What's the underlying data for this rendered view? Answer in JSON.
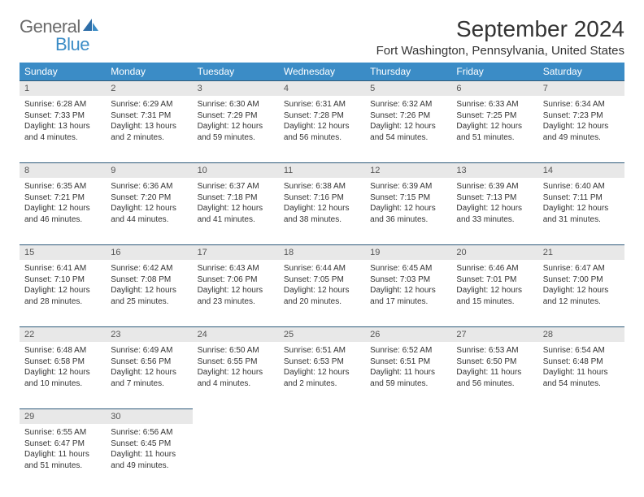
{
  "logo": {
    "word1": "General",
    "word2": "Blue",
    "color_gray": "#6b6b6b",
    "color_blue": "#3b8cc6"
  },
  "header": {
    "title": "September 2024",
    "location": "Fort Washington, Pennsylvania, United States"
  },
  "weekdayHeader": {
    "bg": "#3b8cc6",
    "fg": "#ffffff",
    "labels": [
      "Sunday",
      "Monday",
      "Tuesday",
      "Wednesday",
      "Thursday",
      "Friday",
      "Saturday"
    ]
  },
  "cellStyle": {
    "num_bg": "#e8e8e8",
    "num_border": "#2e5a7a",
    "text_color": "#333333",
    "fontsize_detail": 10,
    "fontsize_num": 11
  },
  "days": [
    {
      "n": "1",
      "sr": "6:28 AM",
      "ss": "7:33 PM",
      "dl": "13 hours and 4 minutes."
    },
    {
      "n": "2",
      "sr": "6:29 AM",
      "ss": "7:31 PM",
      "dl": "13 hours and 2 minutes."
    },
    {
      "n": "3",
      "sr": "6:30 AM",
      "ss": "7:29 PM",
      "dl": "12 hours and 59 minutes."
    },
    {
      "n": "4",
      "sr": "6:31 AM",
      "ss": "7:28 PM",
      "dl": "12 hours and 56 minutes."
    },
    {
      "n": "5",
      "sr": "6:32 AM",
      "ss": "7:26 PM",
      "dl": "12 hours and 54 minutes."
    },
    {
      "n": "6",
      "sr": "6:33 AM",
      "ss": "7:25 PM",
      "dl": "12 hours and 51 minutes."
    },
    {
      "n": "7",
      "sr": "6:34 AM",
      "ss": "7:23 PM",
      "dl": "12 hours and 49 minutes."
    },
    {
      "n": "8",
      "sr": "6:35 AM",
      "ss": "7:21 PM",
      "dl": "12 hours and 46 minutes."
    },
    {
      "n": "9",
      "sr": "6:36 AM",
      "ss": "7:20 PM",
      "dl": "12 hours and 44 minutes."
    },
    {
      "n": "10",
      "sr": "6:37 AM",
      "ss": "7:18 PM",
      "dl": "12 hours and 41 minutes."
    },
    {
      "n": "11",
      "sr": "6:38 AM",
      "ss": "7:16 PM",
      "dl": "12 hours and 38 minutes."
    },
    {
      "n": "12",
      "sr": "6:39 AM",
      "ss": "7:15 PM",
      "dl": "12 hours and 36 minutes."
    },
    {
      "n": "13",
      "sr": "6:39 AM",
      "ss": "7:13 PM",
      "dl": "12 hours and 33 minutes."
    },
    {
      "n": "14",
      "sr": "6:40 AM",
      "ss": "7:11 PM",
      "dl": "12 hours and 31 minutes."
    },
    {
      "n": "15",
      "sr": "6:41 AM",
      "ss": "7:10 PM",
      "dl": "12 hours and 28 minutes."
    },
    {
      "n": "16",
      "sr": "6:42 AM",
      "ss": "7:08 PM",
      "dl": "12 hours and 25 minutes."
    },
    {
      "n": "17",
      "sr": "6:43 AM",
      "ss": "7:06 PM",
      "dl": "12 hours and 23 minutes."
    },
    {
      "n": "18",
      "sr": "6:44 AM",
      "ss": "7:05 PM",
      "dl": "12 hours and 20 minutes."
    },
    {
      "n": "19",
      "sr": "6:45 AM",
      "ss": "7:03 PM",
      "dl": "12 hours and 17 minutes."
    },
    {
      "n": "20",
      "sr": "6:46 AM",
      "ss": "7:01 PM",
      "dl": "12 hours and 15 minutes."
    },
    {
      "n": "21",
      "sr": "6:47 AM",
      "ss": "7:00 PM",
      "dl": "12 hours and 12 minutes."
    },
    {
      "n": "22",
      "sr": "6:48 AM",
      "ss": "6:58 PM",
      "dl": "12 hours and 10 minutes."
    },
    {
      "n": "23",
      "sr": "6:49 AM",
      "ss": "6:56 PM",
      "dl": "12 hours and 7 minutes."
    },
    {
      "n": "24",
      "sr": "6:50 AM",
      "ss": "6:55 PM",
      "dl": "12 hours and 4 minutes."
    },
    {
      "n": "25",
      "sr": "6:51 AM",
      "ss": "6:53 PM",
      "dl": "12 hours and 2 minutes."
    },
    {
      "n": "26",
      "sr": "6:52 AM",
      "ss": "6:51 PM",
      "dl": "11 hours and 59 minutes."
    },
    {
      "n": "27",
      "sr": "6:53 AM",
      "ss": "6:50 PM",
      "dl": "11 hours and 56 minutes."
    },
    {
      "n": "28",
      "sr": "6:54 AM",
      "ss": "6:48 PM",
      "dl": "11 hours and 54 minutes."
    },
    {
      "n": "29",
      "sr": "6:55 AM",
      "ss": "6:47 PM",
      "dl": "11 hours and 51 minutes."
    },
    {
      "n": "30",
      "sr": "6:56 AM",
      "ss": "6:45 PM",
      "dl": "11 hours and 49 minutes."
    }
  ],
  "labels": {
    "sunrise": "Sunrise:",
    "sunset": "Sunset:",
    "daylight": "Daylight:"
  },
  "layout": {
    "start_weekday": 0,
    "total_cells": 35
  }
}
